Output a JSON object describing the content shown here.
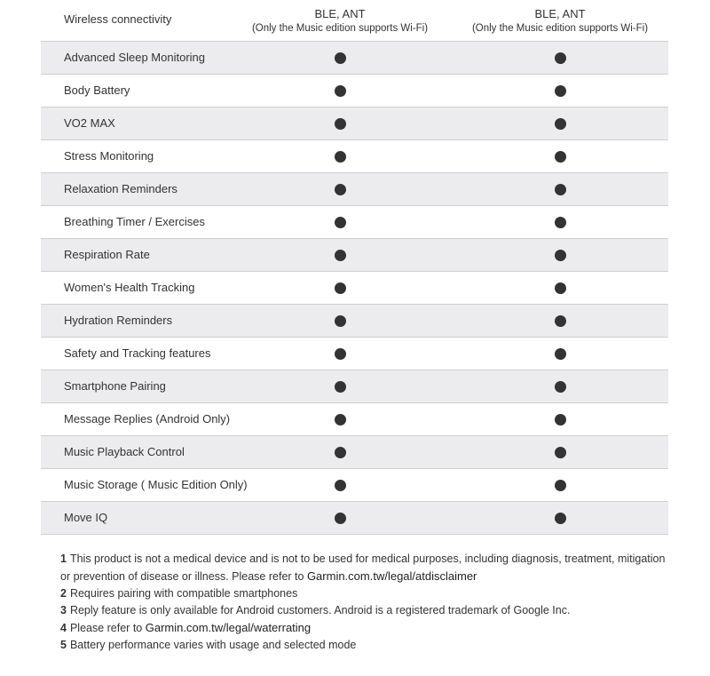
{
  "table": {
    "header": {
      "label": "Wireless connectivity",
      "columns": [
        {
          "main": "BLE, ANT",
          "note": "(Only the Music edition supports Wi-Fi)"
        },
        {
          "main": "BLE, ANT",
          "note": "(Only the Music edition supports Wi-Fi)"
        }
      ]
    },
    "rows": [
      "Advanced Sleep Monitoring",
      "Body Battery",
      "VO2 MAX",
      "Stress Monitoring",
      "Relaxation Reminders",
      "Breathing Timer / Exercises",
      "Respiration Rate",
      "Women's Health Tracking",
      "Hydration Reminders",
      "Safety and Tracking features",
      "Smartphone Pairing",
      "Message Replies (Android Only)",
      "Music Playback Control",
      "Music Storage ( Music Edition Only)",
      "Move IQ"
    ]
  },
  "footnotes": [
    {
      "number": "1",
      "text": "This product is not a medical device and is not to be used for medical purposes, including diagnosis, treatment, mitigation or prevention of disease or illness. Please refer to",
      "link": "Garmin.com.tw/legal/atdisclaimer"
    },
    {
      "number": "2",
      "text": "Requires pairing with compatible smartphones"
    },
    {
      "number": "3",
      "text": "Reply feature is only available for Android customers. Android is a registered trademark of Google Inc."
    },
    {
      "number": "4",
      "text": "Please refer to",
      "link": "Garmin.com.tw/legal/waterrating"
    },
    {
      "number": "5",
      "text": "Battery performance varies with usage and selected mode"
    }
  ]
}
